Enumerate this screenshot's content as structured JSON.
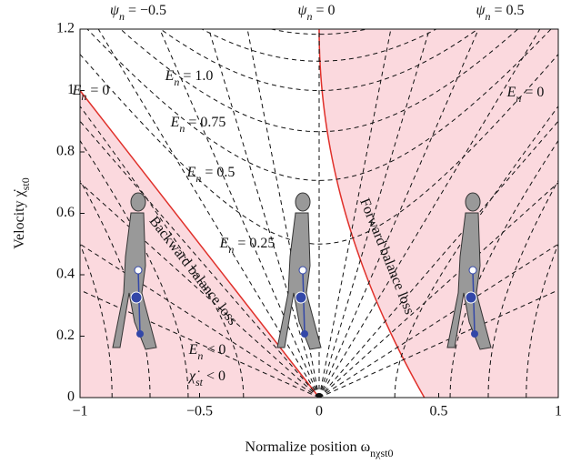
{
  "chart_data": {
    "type": "phase-plane",
    "x_label": [
      {
        "text": "Normalize position ω",
        "sub": false
      },
      {
        "text": "nχst0",
        "sub": true
      }
    ],
    "y_label": [
      {
        "text": "Velocity ",
        "sub": false
      },
      {
        "text": "χ̇",
        "sub": false
      },
      {
        "text": "st0",
        "sub": true
      }
    ],
    "xlim": [
      -1,
      1
    ],
    "ylim": [
      0,
      1.2
    ],
    "xticks": [
      {
        "value": -1,
        "label": "−1"
      },
      {
        "value": -0.5,
        "label": "−0.5"
      },
      0,
      0.5,
      1
    ],
    "yticks": [
      0,
      0.2,
      0.4,
      0.6,
      0.8,
      1,
      1.2
    ],
    "region_color": "#fbd9de",
    "boundary_color": "#e0302a",
    "annotations": [
      {
        "parts": [
          {
            "text": "ψ",
            "sub": false
          },
          {
            "text": "n",
            "sub": true
          },
          {
            "text": " = −0.5",
            "sub": false
          }
        ]
      },
      {
        "parts": [
          {
            "text": "ψ",
            "sub": false
          },
          {
            "text": "n",
            "sub": true
          },
          {
            "text": " = 0",
            "sub": false
          }
        ]
      },
      {
        "parts": [
          {
            "text": "ψ",
            "sub": false
          },
          {
            "text": "n",
            "sub": true
          },
          {
            "text": " = 0.5",
            "sub": false
          }
        ]
      },
      {
        "parts": [
          {
            "text": "E",
            "sub": false
          },
          {
            "text": "n",
            "sub": true
          },
          {
            "text": " = 1.0",
            "sub": false
          }
        ]
      },
      {
        "parts": [
          {
            "text": "E",
            "sub": false
          },
          {
            "text": "n",
            "sub": true
          },
          {
            "text": " = 0",
            "sub": false
          }
        ]
      },
      {
        "parts": [
          {
            "text": "E",
            "sub": false
          },
          {
            "text": "n",
            "sub": true
          },
          {
            "text": " = 0",
            "sub": false
          }
        ]
      },
      {
        "parts": [
          {
            "text": "E",
            "sub": false
          },
          {
            "text": "n",
            "sub": true
          },
          {
            "text": " = 0.75",
            "sub": false
          }
        ]
      },
      {
        "parts": [
          {
            "text": "E",
            "sub": false
          },
          {
            "text": "n",
            "sub": true
          },
          {
            "text": " = 0.5",
            "sub": false
          }
        ]
      },
      {
        "parts": [
          {
            "text": "E",
            "sub": false
          },
          {
            "text": "n",
            "sub": true
          },
          {
            "text": " = 0.25",
            "sub": false
          }
        ]
      },
      {
        "parts": [
          {
            "text": "E",
            "sub": false
          },
          {
            "text": "n",
            "sub": true
          },
          {
            "text": " < 0",
            "sub": false
          }
        ]
      },
      {
        "parts": [
          {
            "text": "χ̇",
            "sub": false
          },
          {
            "text": "st",
            "sub": true
          },
          {
            "text": " < 0",
            "sub": false
          }
        ]
      },
      {
        "parts": [
          {
            "text": "Backward balance loss",
            "sub": false
          }
        ]
      },
      {
        "parts": [
          {
            "text": "Forward balance loss",
            "sub": false
          }
        ]
      }
    ]
  }
}
